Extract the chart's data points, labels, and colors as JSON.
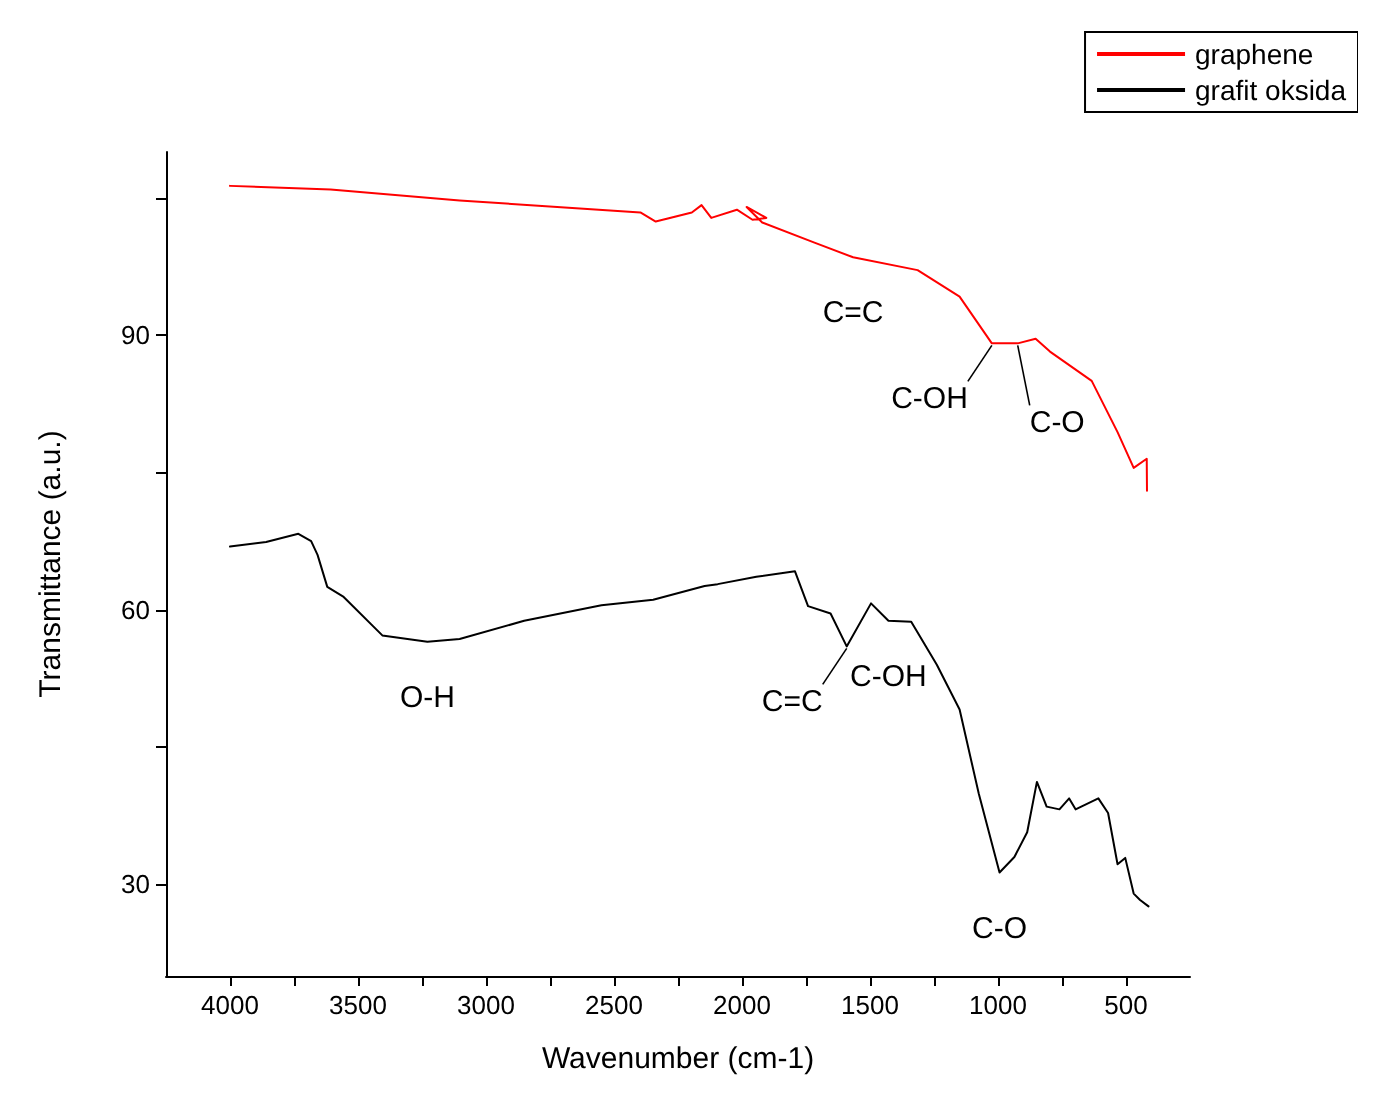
{
  "chart_data": {
    "type": "line",
    "xlabel": "Wavenumber (cm-1)",
    "ylabel": "Transmittance (a.u.)",
    "xlim": [
      4250,
      250
    ],
    "ylim": [
      20,
      110
    ],
    "xticks": [
      4000,
      {
        "value": 3750,
        "label": null
      },
      3500,
      {
        "value": 3250,
        "label": null
      },
      3000,
      {
        "value": 2750,
        "label": null
      },
      2500,
      {
        "value": 2250,
        "label": null
      },
      2000,
      {
        "value": 1750,
        "label": null
      },
      1500,
      {
        "value": 1250,
        "label": null
      },
      1000,
      {
        "value": 750,
        "label": null
      },
      500
    ],
    "yticks": [
      30,
      {
        "value": 45,
        "label": null
      },
      60,
      {
        "value": 75,
        "label": null
      },
      90,
      {
        "value": 105,
        "label": null
      }
    ],
    "grid": false,
    "legend": "top right",
    "marker": "none",
    "line_style": "solid",
    "series": [
      {
        "name": "graphene",
        "color": "#ff0000",
        "x": [
          4000,
          3607,
          3103,
          2397,
          2337,
          2196,
          2158,
          2120,
          2020,
          1959,
          1905,
          1982,
          1921,
          1717,
          1566,
          1314,
          1150,
          1024,
          923,
          853,
          797,
          634,
          533,
          470,
          419,
          418
        ],
        "values": [
          106.3,
          105.9,
          104.7,
          103.4,
          102.4,
          103.4,
          104.2,
          102.8,
          103.7,
          102.6,
          102.8,
          104.0,
          102.3,
          100.1,
          98.5,
          97.1,
          94.2,
          89.1,
          89.1,
          89.6,
          88.2,
          85.0,
          79.4,
          75.5,
          76.5,
          73.0
        ]
      },
      {
        "name": "grafit oksida",
        "color": "#000000",
        "x": [
          4000,
          3859,
          3733,
          3683,
          3658,
          3620,
          3556,
          3405,
          3229,
          3103,
          2851,
          2549,
          2347,
          2146,
          2095,
          1944,
          1793,
          1742,
          1654,
          1591,
          1496,
          1428,
          1339,
          1239,
          1150,
          1075,
          994,
          936,
          886,
          848,
          810,
          760,
          722,
          697,
          608,
          570,
          533,
          503,
          470,
          445,
          412
        ],
        "values": [
          66.9,
          67.4,
          68.3,
          67.5,
          66.0,
          62.5,
          61.4,
          57.2,
          56.5,
          56.8,
          58.8,
          60.5,
          61.1,
          62.6,
          62.8,
          63.6,
          64.2,
          60.4,
          59.6,
          56.0,
          60.7,
          58.8,
          58.7,
          54.0,
          49.1,
          39.9,
          31.3,
          33.0,
          35.7,
          41.2,
          38.5,
          38.2,
          39.4,
          38.2,
          39.4,
          37.8,
          32.2,
          32.9,
          29.0,
          28.3,
          27.6
        ]
      }
    ],
    "annotations": [
      {
        "text": "C=C",
        "x": 1566,
        "y": 98.5
      },
      {
        "text": "C-OH",
        "x": 1024,
        "y": 89.1
      },
      {
        "text": "C-O",
        "x": 923,
        "y": 89.1
      },
      {
        "text": "O-H",
        "x": 3229,
        "y": 56.5
      },
      {
        "text": "C=C",
        "x": 1591,
        "y": 56.0
      },
      {
        "text": "C-OH",
        "x": 1428,
        "y": 58.8
      },
      {
        "text": "C-O",
        "x": 994,
        "y": 31.3
      }
    ]
  }
}
